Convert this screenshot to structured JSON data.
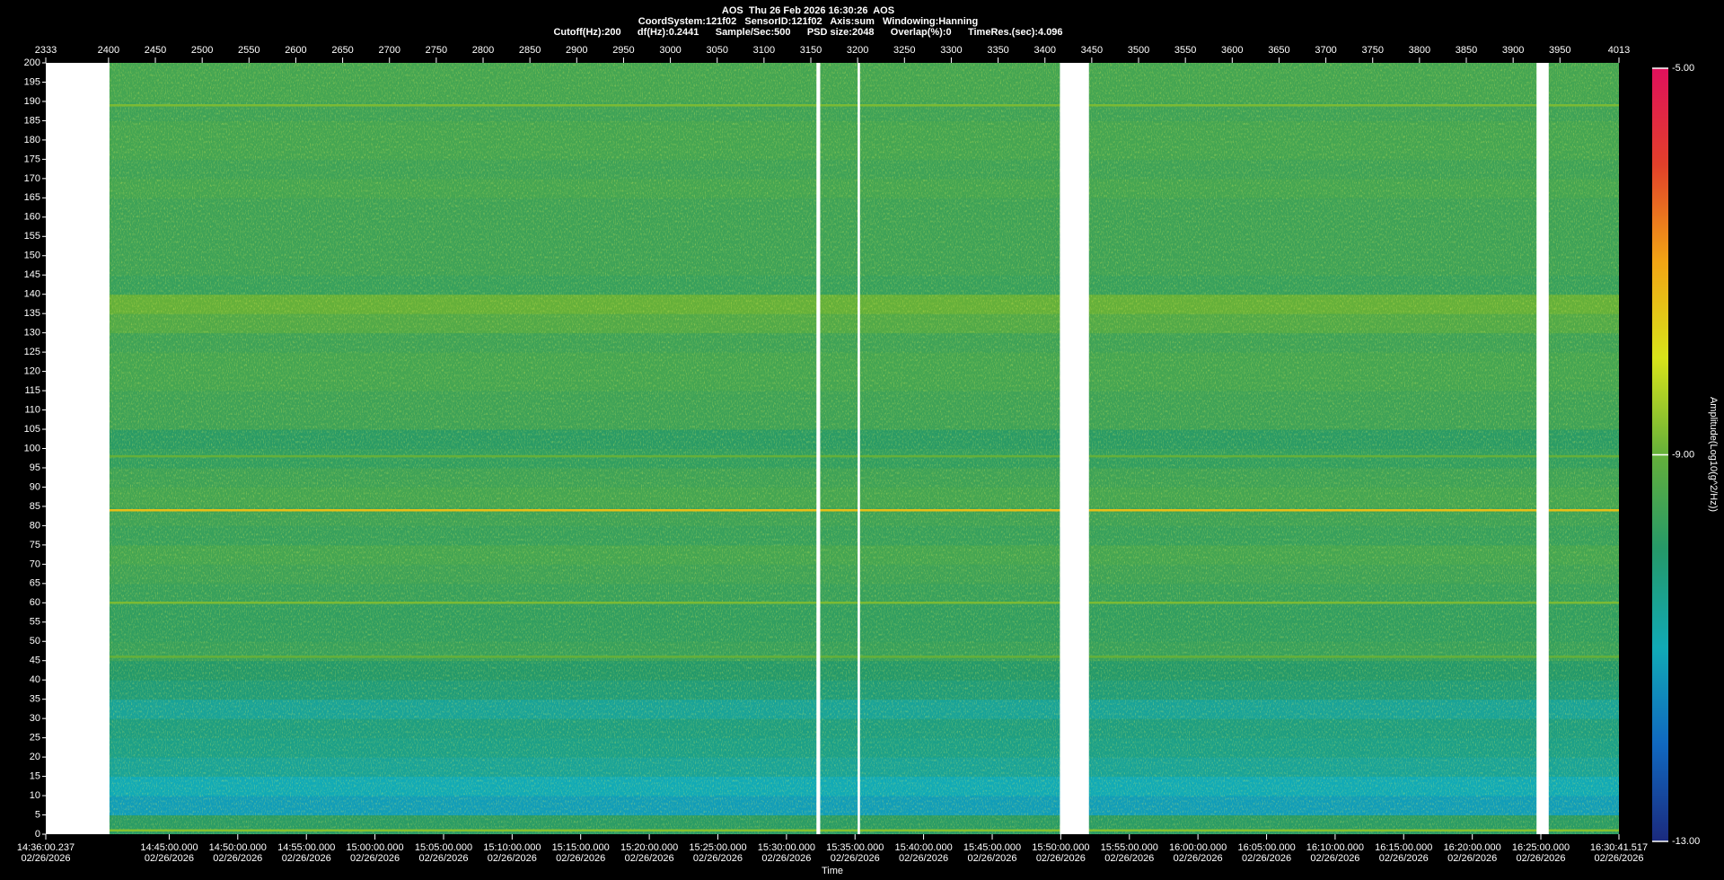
{
  "chart_data": {
    "type": "spectrogram",
    "title": "AOS  Thu 26 Feb 2026 16:30:26  AOS",
    "subtitle": "CoordSystem:121f02   SensorID:121f02   Axis:sum   Windowing:Hanning",
    "info": "Cutoff(Hz):200      df(Hz):0.2441      Sample/Sec:500      PSD size:2048      Overlap(%):0      TimeRes.(sec):4.096",
    "xlabel": "Time",
    "colorbar_label": "Amplitude(Log10(g^2/Hz))",
    "xlim": [
      2333,
      4013
    ],
    "xticks": [
      2333,
      2400,
      2450,
      2500,
      2550,
      2600,
      2650,
      2700,
      2750,
      2800,
      2850,
      2900,
      2950,
      3000,
      3050,
      3100,
      3150,
      3200,
      3250,
      3300,
      3350,
      3400,
      3450,
      3500,
      3550,
      3600,
      3650,
      3700,
      3750,
      3800,
      3850,
      3900,
      3950,
      4013
    ],
    "time_ticks": [
      {
        "value": 2333,
        "label": "14:36:00.237",
        "date": "02/26/2026"
      },
      {
        "value": 2464.8,
        "label": "14:45:00.000",
        "date": "02/26/2026"
      },
      {
        "value": 2538.0,
        "label": "14:50:00.000",
        "date": "02/26/2026"
      },
      {
        "value": 2611.3,
        "label": "14:55:00.000",
        "date": "02/26/2026"
      },
      {
        "value": 2684.5,
        "label": "15:00:00.000",
        "date": "02/26/2026"
      },
      {
        "value": 2757.8,
        "label": "15:05:00.000",
        "date": "02/26/2026"
      },
      {
        "value": 2831.0,
        "label": "15:10:00.000",
        "date": "02/26/2026"
      },
      {
        "value": 2904.2,
        "label": "15:15:00.000",
        "date": "02/26/2026"
      },
      {
        "value": 2977.5,
        "label": "15:20:00.000",
        "date": "02/26/2026"
      },
      {
        "value": 3050.7,
        "label": "15:25:00.000",
        "date": "02/26/2026"
      },
      {
        "value": 3124.0,
        "label": "15:30:00.000",
        "date": "02/26/2026"
      },
      {
        "value": 3197.2,
        "label": "15:35:00.000",
        "date": "02/26/2026"
      },
      {
        "value": 3270.4,
        "label": "15:40:00.000",
        "date": "02/26/2026"
      },
      {
        "value": 3343.7,
        "label": "15:45:00.000",
        "date": "02/26/2026"
      },
      {
        "value": 3416.9,
        "label": "15:50:00.000",
        "date": "02/26/2026"
      },
      {
        "value": 3490.2,
        "label": "15:55:00.000",
        "date": "02/26/2026"
      },
      {
        "value": 3563.4,
        "label": "16:00:00.000",
        "date": "02/26/2026"
      },
      {
        "value": 3636.7,
        "label": "16:05:00.000",
        "date": "02/26/2026"
      },
      {
        "value": 3709.9,
        "label": "16:10:00.000",
        "date": "02/26/2026"
      },
      {
        "value": 3783.1,
        "label": "16:15:00.000",
        "date": "02/26/2026"
      },
      {
        "value": 3856.4,
        "label": "16:20:00.000",
        "date": "02/26/2026"
      },
      {
        "value": 3929.6,
        "label": "16:25:00.000",
        "date": "02/26/2026"
      },
      {
        "value": 4013,
        "label": "16:30:41.517",
        "date": "02/26/2026"
      }
    ],
    "ylim": [
      0,
      200
    ],
    "yticks": [
      0,
      5,
      10,
      15,
      20,
      25,
      30,
      35,
      40,
      45,
      50,
      55,
      60,
      65,
      70,
      75,
      80,
      85,
      90,
      95,
      100,
      105,
      110,
      115,
      120,
      125,
      130,
      135,
      140,
      145,
      150,
      155,
      160,
      165,
      170,
      175,
      180,
      185,
      190,
      195,
      200
    ],
    "freq_bins": [
      0,
      5,
      10,
      15,
      20,
      25,
      30,
      35,
      40,
      45,
      50,
      55,
      60,
      65,
      70,
      75,
      80,
      85,
      90,
      95,
      100,
      105,
      110,
      115,
      120,
      125,
      130,
      135,
      140,
      145,
      150,
      155,
      160,
      165,
      170,
      175,
      180,
      185,
      190,
      195,
      200
    ],
    "amplitude": [
      -9.9,
      -11.2,
      -11.0,
      -10.6,
      -10.4,
      -10.3,
      -10.6,
      -10.2,
      -10.0,
      -9.7,
      -9.8,
      -9.8,
      -9.7,
      -9.6,
      -9.5,
      -9.7,
      -9.6,
      -9.5,
      -9.6,
      -9.8,
      -9.9,
      -9.6,
      -9.6,
      -9.5,
      -9.5,
      -9.6,
      -9.3,
      -9.0,
      -9.7,
      -9.6,
      -9.6,
      -9.6,
      -9.6,
      -9.5,
      -9.6,
      -9.5,
      -9.5,
      -9.6,
      -9.5,
      -9.5
    ],
    "lines": [
      {
        "freq": 1,
        "amplitude": -8.7
      },
      {
        "freq": 46,
        "amplitude": -9.0
      },
      {
        "freq": 60,
        "amplitude": -8.8
      },
      {
        "freq": 84,
        "amplitude": -7.4
      },
      {
        "freq": 98,
        "amplitude": -9.0
      },
      {
        "freq": 189,
        "amplitude": -8.8
      }
    ],
    "gaps": [
      [
        2333,
        2401
      ],
      [
        3156,
        3160
      ],
      [
        3200,
        3202.5
      ],
      [
        3416,
        3447
      ],
      [
        3925,
        3938
      ]
    ],
    "gap_color": "#ffffff",
    "zlim": [
      -13,
      -5
    ],
    "zticks": [
      {
        "value": -5,
        "label": "-5.00"
      },
      {
        "value": -9,
        "label": "-9.00"
      },
      {
        "value": -13,
        "label": "-13.00"
      }
    ],
    "colormap": [
      "#1b2a7e",
      "#1068c0",
      "#11aab6",
      "#24996a",
      "#64b03a",
      "#d8e41a",
      "#f2a414",
      "#e2402a",
      "#e0105c"
    ]
  }
}
